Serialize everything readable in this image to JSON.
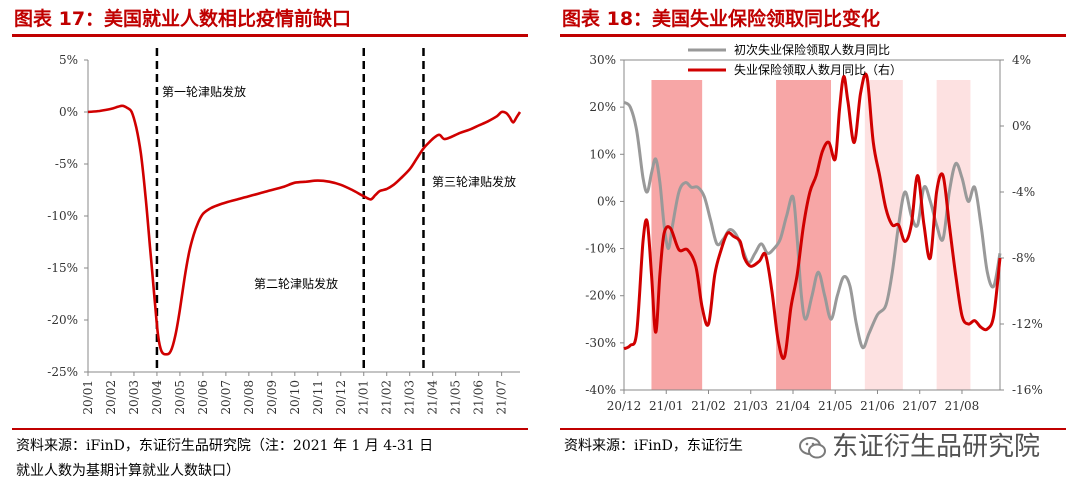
{
  "left": {
    "title": "图表 17：美国就业人数相比疫情前缺口",
    "source_line1": "资料来源：iFinD，东证衍生品研究院（注：2021 年 1 月 4-31 日",
    "source_line2": "就业人数为基期计算就业人数缺口）",
    "annotations": [
      "第一轮津贴发放",
      "第二轮津贴发放",
      "第三轮津贴发放"
    ]
  },
  "right": {
    "title": "图表 18：美国失业保险领取同比变化",
    "source": "资料来源：iFinD，东证衍生",
    "watermark": "东证衍生品研究院"
  },
  "colors": {
    "title_red": "#c00000",
    "line_red": "#d00000",
    "line_gray": "#999999",
    "shade_dark": "#f7a6a6",
    "shade_light": "#fde1e1",
    "dash": "#000000"
  },
  "chart_data": [
    {
      "type": "line",
      "title": "图表 17：美国就业人数相比疫情前缺口",
      "x_tick_labels": [
        "20/01",
        "20/02",
        "20/03",
        "20/04",
        "20/05",
        "20/06",
        "20/07",
        "20/08",
        "20/09",
        "20/10",
        "20/11",
        "20/12",
        "21/01",
        "21/02",
        "21/03",
        "21/04",
        "21/05",
        "21/06",
        "21/07"
      ],
      "x_range": [
        0,
        18.8
      ],
      "y_tick_labels": [
        "5%",
        "0%",
        "-5%",
        "-10%",
        "-15%",
        "-20%",
        "-25%"
      ],
      "ylim": [
        -25,
        5
      ],
      "grid": false,
      "series": [
        {
          "color": "#d00000",
          "points": [
            [
              0,
              0
            ],
            [
              0.5,
              0.1
            ],
            [
              1,
              0.3
            ],
            [
              1.3,
              0.5
            ],
            [
              1.5,
              0.6
            ],
            [
              1.7,
              0.4
            ],
            [
              1.9,
              0
            ],
            [
              2.1,
              -1.5
            ],
            [
              2.3,
              -4
            ],
            [
              2.5,
              -8
            ],
            [
              2.7,
              -13
            ],
            [
              2.9,
              -18
            ],
            [
              3.05,
              -21.5
            ],
            [
              3.2,
              -23
            ],
            [
              3.4,
              -23.3
            ],
            [
              3.6,
              -23
            ],
            [
              3.8,
              -21.5
            ],
            [
              4,
              -19
            ],
            [
              4.2,
              -16
            ],
            [
              4.4,
              -13.5
            ],
            [
              4.6,
              -11.8
            ],
            [
              4.8,
              -10.6
            ],
            [
              5,
              -9.8
            ],
            [
              5.3,
              -9.3
            ],
            [
              5.6,
              -9
            ],
            [
              6,
              -8.7
            ],
            [
              6.5,
              -8.4
            ],
            [
              7,
              -8.1
            ],
            [
              7.5,
              -7.8
            ],
            [
              8,
              -7.5
            ],
            [
              8.5,
              -7.2
            ],
            [
              9,
              -6.8
            ],
            [
              9.5,
              -6.7
            ],
            [
              10,
              -6.6
            ],
            [
              10.5,
              -6.7
            ],
            [
              11,
              -7
            ],
            [
              11.5,
              -7.5
            ],
            [
              12,
              -8.1
            ],
            [
              12.3,
              -8.4
            ],
            [
              12.5,
              -8
            ],
            [
              12.7,
              -7.6
            ],
            [
              13,
              -7.4
            ],
            [
              13.3,
              -7
            ],
            [
              13.6,
              -6.4
            ],
            [
              14,
              -5.5
            ],
            [
              14.3,
              -4.5
            ],
            [
              14.6,
              -3.5
            ],
            [
              14.9,
              -2.8
            ],
            [
              15.1,
              -2.4
            ],
            [
              15.3,
              -2.2
            ],
            [
              15.5,
              -2.6
            ],
            [
              15.8,
              -2.4
            ],
            [
              16.2,
              -2
            ],
            [
              16.6,
              -1.7
            ],
            [
              17,
              -1.3
            ],
            [
              17.4,
              -0.9
            ],
            [
              17.8,
              -0.4
            ],
            [
              18,
              0
            ],
            [
              18.2,
              -0.1
            ],
            [
              18.35,
              -0.5
            ],
            [
              18.5,
              -1
            ],
            [
              18.65,
              -0.5
            ],
            [
              18.8,
              0
            ]
          ]
        }
      ],
      "markers": [
        {
          "x": 3.0,
          "label": "第一轮津贴发放"
        },
        {
          "x": 12.0,
          "label": "第二轮津贴发放"
        },
        {
          "x": 14.6,
          "label": "第三轮津贴发放"
        }
      ]
    },
    {
      "type": "line",
      "title": "图表 18：美国失业保险领取同比变化",
      "x_tick_labels": [
        "20/12",
        "21/01",
        "21/02",
        "21/03",
        "21/04",
        "21/05",
        "21/06",
        "21/07",
        "21/08"
      ],
      "x_range": [
        0,
        8.9
      ],
      "y_left_tick_labels": [
        "30%",
        "20%",
        "10%",
        "0%",
        "-10%",
        "-20%",
        "-30%",
        "-40%"
      ],
      "ylim_left": [
        -40,
        30
      ],
      "y_right_tick_labels": [
        "4%",
        "0%",
        "-4%",
        "-8%",
        "-12%",
        "-16%"
      ],
      "ylim_right": [
        -16,
        4
      ],
      "legend_position": "top-left",
      "grid": false,
      "shaded_periods": [
        {
          "from": 0.65,
          "to": 1.85,
          "style": "dark"
        },
        {
          "from": 3.6,
          "to": 4.9,
          "style": "dark"
        },
        {
          "from": 5.7,
          "to": 6.6,
          "style": "light"
        },
        {
          "from": 7.4,
          "to": 8.2,
          "style": "light"
        }
      ],
      "series": [
        {
          "name": "初次失业保险领取人数月同比",
          "axis": "left",
          "color": "#999999",
          "points": [
            [
              0,
              21
            ],
            [
              0.15,
              20
            ],
            [
              0.3,
              15
            ],
            [
              0.45,
              5
            ],
            [
              0.55,
              2
            ],
            [
              0.65,
              6
            ],
            [
              0.75,
              9
            ],
            [
              0.85,
              4
            ],
            [
              0.95,
              -5
            ],
            [
              1.05,
              -10
            ],
            [
              1.15,
              -5
            ],
            [
              1.3,
              2
            ],
            [
              1.45,
              4
            ],
            [
              1.6,
              3
            ],
            [
              1.75,
              3
            ],
            [
              1.9,
              1
            ],
            [
              2.05,
              -4
            ],
            [
              2.2,
              -9
            ],
            [
              2.35,
              -8
            ],
            [
              2.5,
              -6
            ],
            [
              2.65,
              -7
            ],
            [
              2.8,
              -10
            ],
            [
              2.95,
              -13
            ],
            [
              3.1,
              -11
            ],
            [
              3.25,
              -9
            ],
            [
              3.4,
              -11
            ],
            [
              3.55,
              -10
            ],
            [
              3.7,
              -8
            ],
            [
              3.85,
              -3
            ],
            [
              4.0,
              1
            ],
            [
              4.1,
              -8
            ],
            [
              4.2,
              -20
            ],
            [
              4.3,
              -25
            ],
            [
              4.45,
              -20
            ],
            [
              4.6,
              -15
            ],
            [
              4.75,
              -20
            ],
            [
              4.9,
              -25
            ],
            [
              5.05,
              -20
            ],
            [
              5.2,
              -16
            ],
            [
              5.35,
              -18
            ],
            [
              5.5,
              -26
            ],
            [
              5.65,
              -31
            ],
            [
              5.8,
              -28
            ],
            [
              6.0,
              -24
            ],
            [
              6.2,
              -22
            ],
            [
              6.35,
              -15
            ],
            [
              6.5,
              -5
            ],
            [
              6.65,
              2
            ],
            [
              6.8,
              -3
            ],
            [
              6.95,
              -5
            ],
            [
              7.1,
              3
            ],
            [
              7.25,
              0
            ],
            [
              7.4,
              -5
            ],
            [
              7.55,
              -8
            ],
            [
              7.7,
              2
            ],
            [
              7.85,
              8
            ],
            [
              8.0,
              5
            ],
            [
              8.15,
              0
            ],
            [
              8.3,
              3
            ],
            [
              8.45,
              -5
            ],
            [
              8.6,
              -15
            ],
            [
              8.75,
              -18
            ],
            [
              8.9,
              -11
            ]
          ]
        },
        {
          "name": "失业保险领取人数月同比（右）",
          "axis": "right",
          "color": "#d00000",
          "points": [
            [
              0,
              -13.5
            ],
            [
              0.15,
              -13.3
            ],
            [
              0.3,
              -12.5
            ],
            [
              0.45,
              -7
            ],
            [
              0.55,
              -5.8
            ],
            [
              0.65,
              -9
            ],
            [
              0.75,
              -12.5
            ],
            [
              0.85,
              -9
            ],
            [
              0.95,
              -6.5
            ],
            [
              1.1,
              -6.2
            ],
            [
              1.3,
              -7.5
            ],
            [
              1.5,
              -7.5
            ],
            [
              1.7,
              -8.5
            ],
            [
              1.85,
              -11
            ],
            [
              2.0,
              -12
            ],
            [
              2.15,
              -9
            ],
            [
              2.3,
              -7.5
            ],
            [
              2.45,
              -6.5
            ],
            [
              2.6,
              -6.7
            ],
            [
              2.75,
              -7
            ],
            [
              2.85,
              -8
            ],
            [
              3.0,
              -8.5
            ],
            [
              3.2,
              -8.2
            ],
            [
              3.35,
              -7.8
            ],
            [
              3.5,
              -10
            ],
            [
              3.65,
              -13
            ],
            [
              3.8,
              -14
            ],
            [
              3.95,
              -11
            ],
            [
              4.1,
              -9
            ],
            [
              4.25,
              -6
            ],
            [
              4.4,
              -4
            ],
            [
              4.55,
              -3
            ],
            [
              4.7,
              -1.5
            ],
            [
              4.85,
              -1
            ],
            [
              5.0,
              -2
            ],
            [
              5.1,
              1
            ],
            [
              5.2,
              3
            ],
            [
              5.3,
              1.5
            ],
            [
              5.45,
              -1
            ],
            [
              5.6,
              2
            ],
            [
              5.75,
              3
            ],
            [
              5.9,
              -1
            ],
            [
              6.05,
              -3
            ],
            [
              6.2,
              -5
            ],
            [
              6.35,
              -6
            ],
            [
              6.5,
              -6
            ],
            [
              6.65,
              -7
            ],
            [
              6.8,
              -6
            ],
            [
              6.95,
              -3
            ],
            [
              7.1,
              -6
            ],
            [
              7.25,
              -8
            ],
            [
              7.4,
              -4
            ],
            [
              7.55,
              -3
            ],
            [
              7.7,
              -6
            ],
            [
              7.85,
              -9
            ],
            [
              8.0,
              -11.5
            ],
            [
              8.15,
              -12
            ],
            [
              8.3,
              -11.8
            ],
            [
              8.45,
              -12.2
            ],
            [
              8.6,
              -12.3
            ],
            [
              8.75,
              -11.5
            ],
            [
              8.9,
              -8
            ]
          ]
        }
      ]
    }
  ]
}
